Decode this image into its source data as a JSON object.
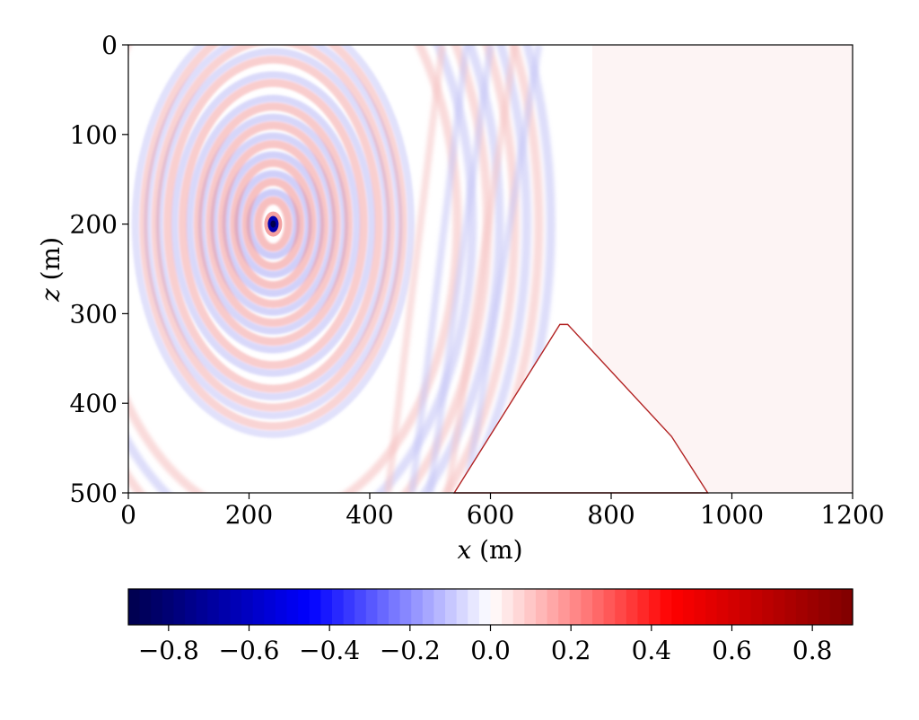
{
  "chart_data": [
    {
      "type": "heatmap",
      "title": "",
      "xlabel_var": "x",
      "xlabel_unit": " (m)",
      "ylabel_var": "z",
      "ylabel_unit": " (m)",
      "xlim": [
        0,
        1200
      ],
      "ylim": [
        0,
        500
      ],
      "y_inverted": true,
      "x_ticks": [
        0,
        200,
        400,
        600,
        800,
        1000,
        1200
      ],
      "x_tick_labels": [
        "0",
        "200",
        "400",
        "600",
        "800",
        "1000",
        "1200"
      ],
      "y_ticks": [
        0,
        100,
        200,
        300,
        400,
        500
      ],
      "y_tick_labels": [
        "0",
        "100",
        "200",
        "300",
        "400",
        "500"
      ],
      "grid": false,
      "colormap": "seismic",
      "source": {
        "x": 240,
        "z": 200
      },
      "wavefronts": {
        "centre": {
          "x": 240,
          "z": 200
        },
        "circular_radii": [
          25,
          45,
          65,
          85,
          105,
          125,
          150,
          175,
          195,
          215
        ],
        "far_ring_radii": [
          305,
          330,
          355,
          375,
          400,
          420,
          440,
          460
        ]
      },
      "obstacle_polygon": [
        [
          540,
          500
        ],
        [
          715,
          312
        ],
        [
          728,
          312
        ],
        [
          900,
          437
        ],
        [
          960,
          500
        ]
      ],
      "obstacle_color": "#b22222"
    },
    {
      "type": "colorbar",
      "colormap": "seismic",
      "range": [
        -0.9,
        0.9
      ],
      "ticks": [
        -0.8,
        -0.6,
        -0.4,
        -0.2,
        0.0,
        0.2,
        0.4,
        0.6,
        0.8
      ],
      "tick_labels": [
        "−0.8",
        "−0.6",
        "−0.4",
        "−0.2",
        "0.0",
        "0.2",
        "0.4",
        "0.6",
        "0.8"
      ],
      "orientation": "horizontal",
      "colors": {
        "low": "#00004c",
        "mid_low": "#0000ff",
        "center": "#ffffff",
        "mid_high": "#ff0000",
        "high": "#7f0000"
      }
    }
  ]
}
